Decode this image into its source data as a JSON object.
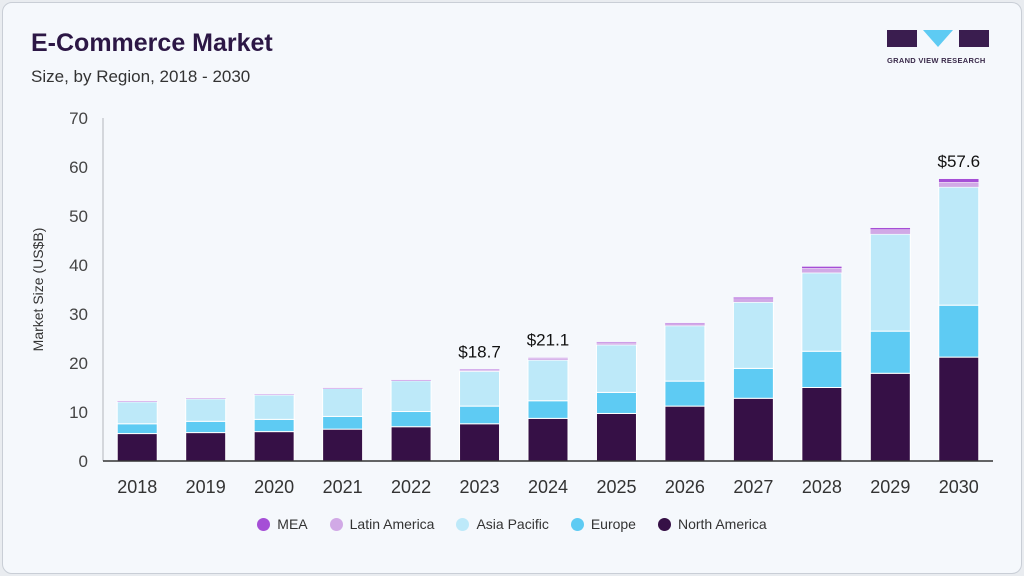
{
  "header": {
    "title": "E-Commerce Market",
    "subtitle": "Size, by Region, 2018 - 2030"
  },
  "logo": {
    "text": "GRAND VIEW RESEARCH"
  },
  "chart_data": {
    "type": "bar",
    "stacked": true,
    "title": "E-Commerce Market",
    "subtitle": "Size, by Region, 2018 - 2030",
    "ylabel": "Market Size (US$B)",
    "xlabel": "",
    "ylim": [
      0,
      70
    ],
    "yticks": [
      0,
      10,
      20,
      30,
      40,
      50,
      60,
      70
    ],
    "grid": false,
    "legend_placement": "bottom",
    "categories": [
      "2018",
      "2019",
      "2020",
      "2021",
      "2022",
      "2023",
      "2024",
      "2025",
      "2026",
      "2027",
      "2028",
      "2029",
      "2030"
    ],
    "series": [
      {
        "name": "North America",
        "color": "#361046",
        "values": [
          5.6,
          5.8,
          6.0,
          6.5,
          7.0,
          7.6,
          8.7,
          9.7,
          11.2,
          12.8,
          15.0,
          17.9,
          21.2
        ]
      },
      {
        "name": "Europe",
        "color": "#5ecbf3",
        "values": [
          2.0,
          2.3,
          2.5,
          2.6,
          3.1,
          3.6,
          3.6,
          4.3,
          5.1,
          6.1,
          7.4,
          8.6,
          10.6
        ]
      },
      {
        "name": "Asia Pacific",
        "color": "#bde9f9",
        "values": [
          4.5,
          4.6,
          5.0,
          5.7,
          6.3,
          7.1,
          8.3,
          9.7,
          11.3,
          13.5,
          16.0,
          19.8,
          24.1
        ]
      },
      {
        "name": "Latin America",
        "color": "#d1a9e6",
        "values": [
          0.1,
          0.1,
          0.1,
          0.1,
          0.1,
          0.3,
          0.35,
          0.4,
          0.4,
          0.7,
          0.9,
          0.9,
          1.0
        ]
      },
      {
        "name": "MEA",
        "color": "#a54fd6",
        "values": [
          0.05,
          0.05,
          0.05,
          0.05,
          0.05,
          0.1,
          0.15,
          0.2,
          0.2,
          0.3,
          0.4,
          0.4,
          0.7
        ]
      }
    ],
    "annotations": [
      {
        "category": "2023",
        "label": "$18.7"
      },
      {
        "category": "2024",
        "label": "$21.1"
      },
      {
        "category": "2030",
        "label": "$57.6"
      }
    ]
  },
  "legend_order": [
    "MEA",
    "Latin America",
    "Asia Pacific",
    "Europe",
    "North America"
  ]
}
